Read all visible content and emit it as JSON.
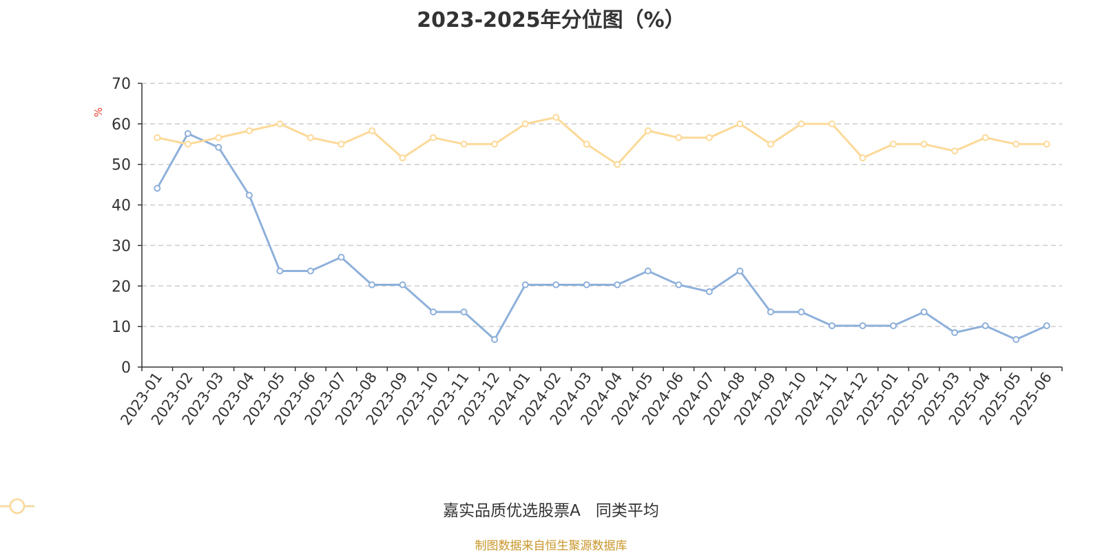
{
  "title": "2023-2025年分位图（%）",
  "source": "制图数据来自恒生聚源数据库",
  "chart_data": {
    "type": "line",
    "title": "2023-2025年分位图（%）",
    "ylabel": "%",
    "ylim": [
      0,
      70
    ],
    "yticks": [
      0,
      10,
      20,
      30,
      40,
      50,
      60,
      70
    ],
    "grid": true,
    "legend_position": "bottom",
    "categories": [
      "2023-01",
      "2023-02",
      "2023-03",
      "2023-04",
      "2023-05",
      "2023-06",
      "2023-07",
      "2023-08",
      "2023-09",
      "2023-10",
      "2023-11",
      "2023-12",
      "2024-01",
      "2024-02",
      "2024-03",
      "2024-04",
      "2024-05",
      "2024-06",
      "2024-07",
      "2024-08",
      "2024-09",
      "2024-10",
      "2024-11",
      "2024-12",
      "2025-01",
      "2025-02",
      "2025-03",
      "2025-04",
      "2025-05",
      "2025-06"
    ],
    "series": [
      {
        "name": "嘉实品质优选股票A",
        "color": "#8eb0da",
        "values": [
          44.1,
          57.6,
          54.2,
          42.4,
          23.7,
          23.7,
          27.1,
          20.3,
          20.3,
          13.6,
          13.6,
          6.8,
          20.3,
          20.3,
          20.3,
          20.3,
          23.7,
          20.3,
          18.6,
          23.7,
          13.6,
          13.6,
          10.2,
          10.2,
          10.2,
          13.6,
          8.5,
          10.2,
          6.8,
          10.2
        ]
      },
      {
        "name": "同类平均",
        "color": "#fcd998",
        "values": [
          56.6,
          55.0,
          56.6,
          58.3,
          60.0,
          56.6,
          55.0,
          58.3,
          51.6,
          56.6,
          55.0,
          55.0,
          60.0,
          61.6,
          55.0,
          50.0,
          58.3,
          56.6,
          56.6,
          60.0,
          55.0,
          60.0,
          60.0,
          51.6,
          55.0,
          55.0,
          53.3,
          56.6,
          55.0,
          55.0
        ]
      }
    ]
  }
}
